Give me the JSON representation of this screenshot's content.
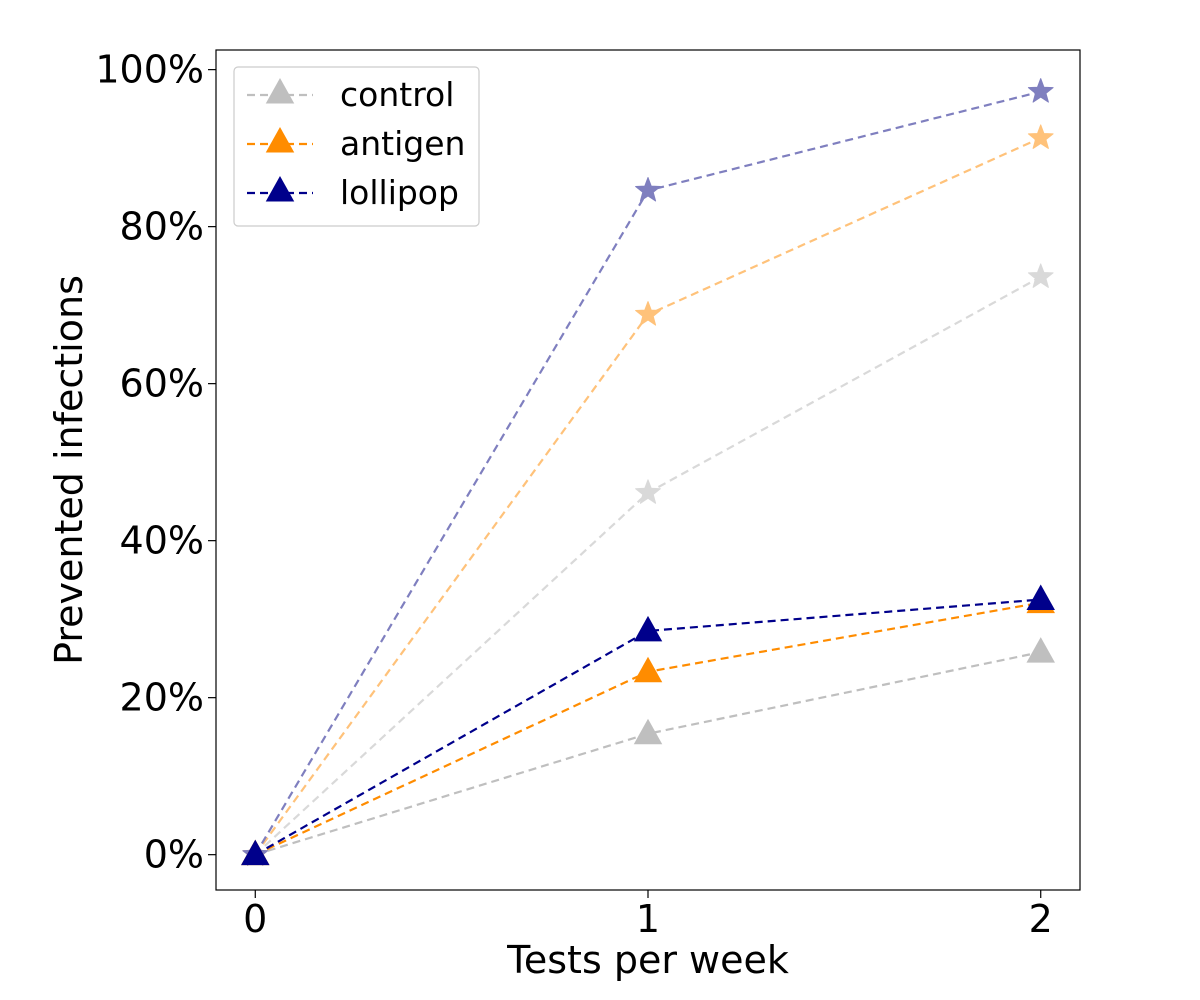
{
  "chart_data": {
    "type": "line",
    "title": "",
    "xlabel": "Tests per week",
    "ylabel": "Prevented infections",
    "x": [
      0,
      1,
      2
    ],
    "x_ticks": [
      "0",
      "1",
      "2"
    ],
    "y_ticks": [
      "0%",
      "20%",
      "40%",
      "60%",
      "80%",
      "100%"
    ],
    "xlim": [
      -0.1,
      2.1
    ],
    "ylim": [
      -4.5,
      102.5
    ],
    "grid": false,
    "legend_position": "top-left",
    "series": [
      {
        "name": "control",
        "color": "#bfbfbf",
        "marker": "triangle",
        "values": [
          0,
          15.4,
          25.8
        ]
      },
      {
        "name": "antigen",
        "color": "#ff8c00",
        "marker": "triangle",
        "values": [
          0,
          23.3,
          32.1
        ]
      },
      {
        "name": "lollipop",
        "color": "#00008b",
        "marker": "triangle",
        "values": [
          0,
          28.5,
          32.5
        ]
      }
    ],
    "secondary_series": [
      {
        "color": "#d9d9d9",
        "marker": "star",
        "values": [
          0,
          46.1,
          73.6
        ]
      },
      {
        "color": "#ffc27a",
        "marker": "star",
        "values": [
          0,
          68.8,
          91.3
        ]
      },
      {
        "color": "#7f7fbf",
        "marker": "star",
        "values": [
          0,
          84.6,
          97.2
        ]
      }
    ]
  }
}
